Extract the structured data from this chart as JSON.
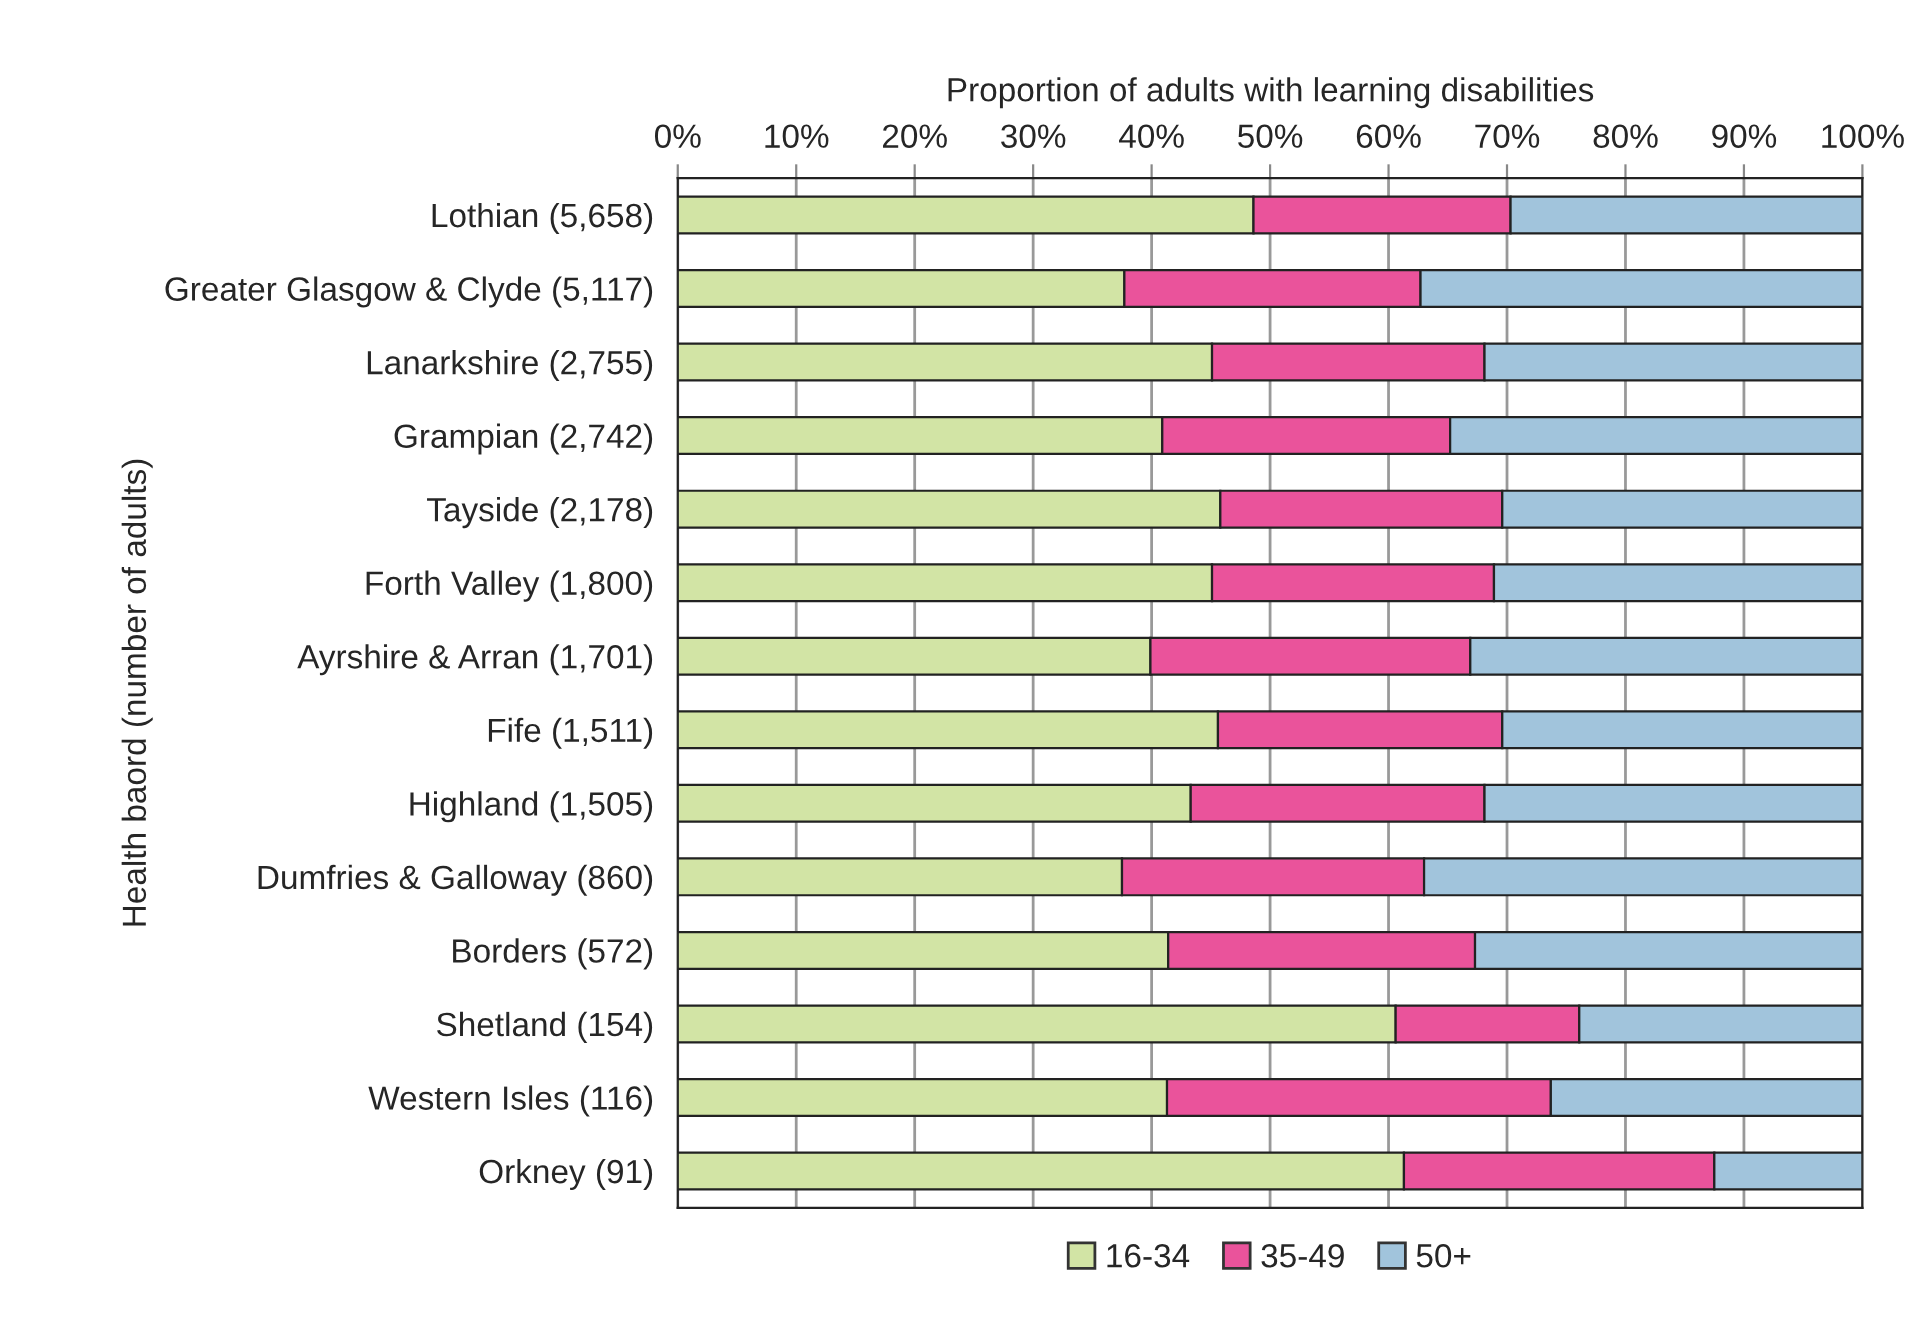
{
  "chart_data": {
    "type": "bar",
    "orientation": "horizontal",
    "stacked": true,
    "xlabel": "Proportion of adults with learning disabilities",
    "ylabel": "Health baord (number of adults)",
    "categories": [
      "Lothian (5,658)",
      "Greater Glasgow & Clyde (5,117)",
      "Lanarkshire (2,755)",
      "Grampian (2,742)",
      "Tayside (2,178)",
      "Forth Valley (1,800)",
      "Ayrshire & Arran (1,701)",
      "Fife (1,511)",
      "Highland (1,505)",
      "Dumfries & Galloway (860)",
      "Borders (572)",
      "Shetland (154)",
      "Western Isles (116)",
      "Orkney (91)"
    ],
    "series": [
      {
        "name": "16-34",
        "color": "#d2e4a5",
        "values": [
          48.6,
          37.7,
          45.1,
          40.9,
          45.8,
          45.1,
          39.9,
          45.6,
          43.3,
          37.5,
          41.4,
          60.6,
          41.3,
          61.3
        ]
      },
      {
        "name": "35-49",
        "color": "#ea539b",
        "values": [
          21.7,
          25.0,
          23.0,
          24.3,
          23.8,
          23.8,
          27.0,
          24.0,
          24.8,
          25.5,
          25.9,
          15.5,
          32.4,
          26.2
        ]
      },
      {
        "name": "50+",
        "color": "#a1c4dc",
        "values": [
          29.7,
          37.3,
          31.9,
          34.8,
          30.4,
          31.1,
          33.1,
          30.4,
          31.9,
          37.0,
          32.7,
          23.9,
          26.3,
          12.5
        ]
      }
    ],
    "xlim": [
      0,
      100
    ],
    "xticks": [
      {
        "value": 0,
        "label": "0%"
      },
      {
        "value": 10,
        "label": "10%"
      },
      {
        "value": 20,
        "label": "20%"
      },
      {
        "value": 30,
        "label": "30%"
      },
      {
        "value": 40,
        "label": "40%"
      },
      {
        "value": 50,
        "label": "50%"
      },
      {
        "value": 60,
        "label": "60%"
      },
      {
        "value": 70,
        "label": "70%"
      },
      {
        "value": 80,
        "label": "80%"
      },
      {
        "value": 90,
        "label": "90%"
      },
      {
        "value": 100,
        "label": "100%"
      }
    ],
    "grid": "x",
    "legend": "bottom"
  }
}
